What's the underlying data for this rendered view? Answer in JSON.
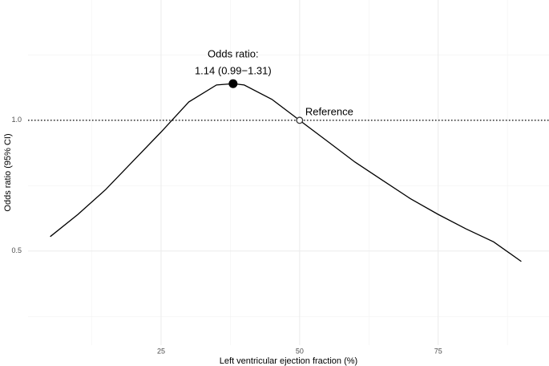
{
  "chart_data": {
    "type": "line",
    "x_label": "Left ventricular ejection fraction (%)",
    "y_label": "Odds ratio (95% CI)",
    "x": [
      5,
      10,
      15,
      20,
      25,
      30,
      35,
      38,
      40,
      45,
      50,
      55,
      60,
      65,
      70,
      75,
      80,
      85,
      90
    ],
    "series": [
      {
        "color": "#000000",
        "values": [
          0.555,
          0.64,
          0.735,
          0.845,
          0.955,
          1.07,
          1.135,
          1.14,
          1.135,
          1.08,
          1.0,
          0.92,
          0.84,
          0.77,
          0.7,
          0.64,
          0.585,
          0.535,
          0.46
        ]
      }
    ],
    "xlim": [
      1,
      95
    ],
    "xticks": [
      25,
      50,
      75
    ],
    "ylim": [
      0.14,
      1.46
    ],
    "yticks": [
      {
        "value": 0.5,
        "label": "0.5"
      },
      {
        "value": 1,
        "label": "1.0"
      }
    ],
    "grid": true,
    "reference_line": 1,
    "highlight": {
      "x": 38,
      "y": 1.14,
      "line1": "Odds ratio:",
      "line2": "1.14 (0.99−1.31)"
    },
    "reference_point": {
      "x": 50,
      "y": 1,
      "label": "Reference"
    }
  }
}
